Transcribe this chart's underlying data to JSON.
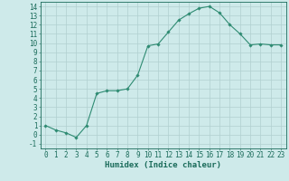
{
  "x": [
    0,
    1,
    2,
    3,
    4,
    5,
    6,
    7,
    8,
    9,
    10,
    11,
    12,
    13,
    14,
    15,
    16,
    17,
    18,
    19,
    20,
    21,
    22,
    23
  ],
  "y": [
    1,
    0.5,
    0.2,
    -0.3,
    1,
    4.5,
    4.8,
    4.8,
    5.0,
    6.5,
    9.7,
    9.9,
    11.2,
    12.5,
    13.2,
    13.8,
    14.0,
    13.3,
    12.0,
    11.0,
    9.8,
    9.9,
    9.8,
    9.8
  ],
  "line_color": "#2e8b72",
  "marker": "D",
  "marker_size": 1.8,
  "bg_color": "#ceeaea",
  "grid_color": "#b0d0d0",
  "xlabel": "Humidex (Indice chaleur)",
  "xlim": [
    -0.5,
    23.5
  ],
  "ylim": [
    -1.5,
    14.5
  ],
  "yticks": [
    -1,
    0,
    1,
    2,
    3,
    4,
    5,
    6,
    7,
    8,
    9,
    10,
    11,
    12,
    13,
    14
  ],
  "xticks": [
    0,
    1,
    2,
    3,
    4,
    5,
    6,
    7,
    8,
    9,
    10,
    11,
    12,
    13,
    14,
    15,
    16,
    17,
    18,
    19,
    20,
    21,
    22,
    23
  ],
  "tick_color": "#1a6b5a",
  "axis_color": "#1a6b5a",
  "xlabel_fontsize": 6.5,
  "tick_fontsize": 5.5
}
